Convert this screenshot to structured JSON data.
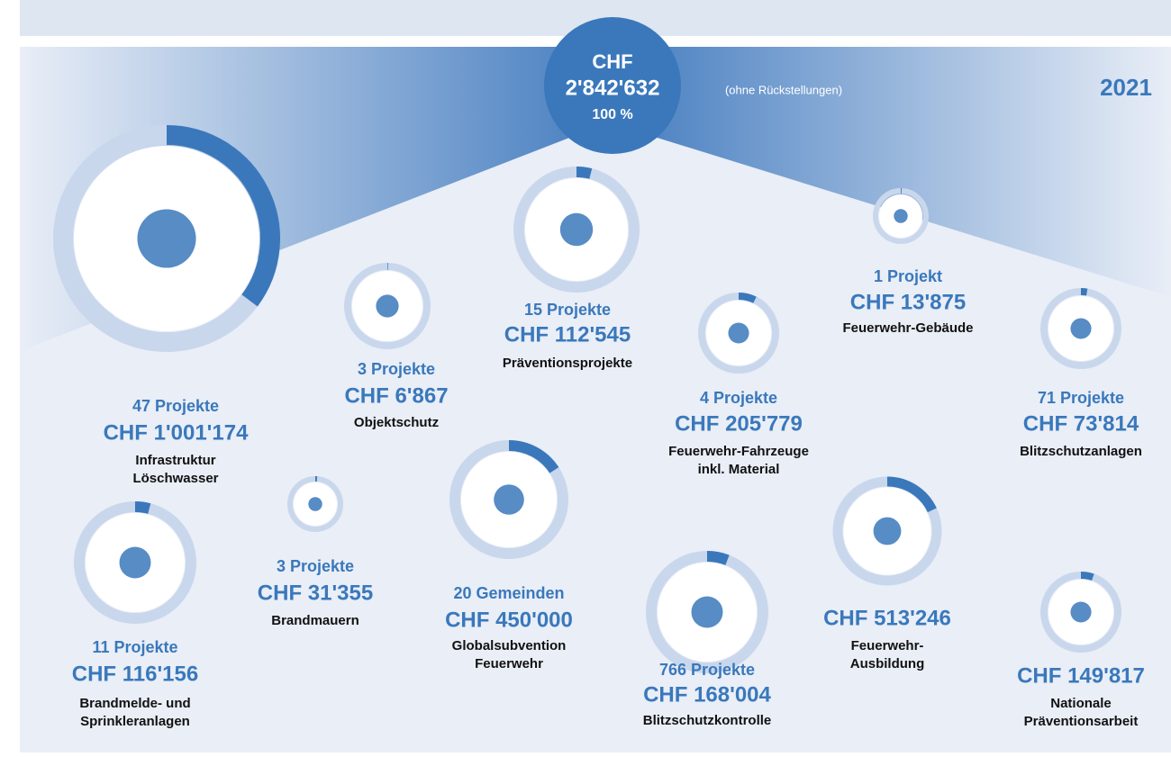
{
  "header": {
    "currency": "CHF",
    "total_label": "2'842'632",
    "total": 2842632,
    "percent": "100 %",
    "note": "(ohne Rückstellungen)",
    "year": "2021"
  },
  "items": [
    {
      "count": "47 Projekte",
      "amount_label": "CHF 1'001'174",
      "amount": 1001174,
      "name": [
        "Infrastruktur",
        "Löschwasser"
      ]
    },
    {
      "count": "3 Projekte",
      "amount_label": "CHF 6'867",
      "amount": 6867,
      "name": [
        "Objektschutz"
      ]
    },
    {
      "count": "15 Projekte",
      "amount_label": "CHF 112'545",
      "amount": 112545,
      "name": [
        "Präventionsprojekte"
      ]
    },
    {
      "count": "4 Projekte",
      "amount_label": "CHF 205'779",
      "amount": 205779,
      "name": [
        "Feuerwehr-Fahrzeuge",
        "inkl. Material"
      ]
    },
    {
      "count": "1 Projekt",
      "amount_label": "CHF 13'875",
      "amount": 13875,
      "name": [
        "Feuerwehr-Gebäude"
      ]
    },
    {
      "count": "71 Projekte",
      "amount_label": "CHF 73'814",
      "amount": 73814,
      "name": [
        "Blitzschutzanlagen"
      ]
    },
    {
      "count": "11 Projekte",
      "amount_label": "CHF 116'156",
      "amount": 116156,
      "name": [
        "Brandmelde- und",
        "Sprinkleranlagen"
      ]
    },
    {
      "count": "3 Projekte",
      "amount_label": "CHF 31'355",
      "amount": 31355,
      "name": [
        "Brandmauern"
      ]
    },
    {
      "count": "20 Gemeinden",
      "amount_label": "CHF 450'000",
      "amount": 450000,
      "name": [
        "Globalsubvention",
        "Feuerwehr"
      ]
    },
    {
      "count": "766 Projekte",
      "amount_label": "CHF 168'004",
      "amount": 168004,
      "name": [
        "Blitzschutzkontrolle"
      ]
    },
    {
      "amount_label": "CHF 513'246",
      "amount": 513246,
      "name": [
        "Feuerwehr-",
        "Ausbildung"
      ]
    },
    {
      "amount_label": "CHF 149'817",
      "amount": 149817,
      "name": [
        "Nationale",
        "Präventionsarbeit"
      ]
    }
  ]
}
